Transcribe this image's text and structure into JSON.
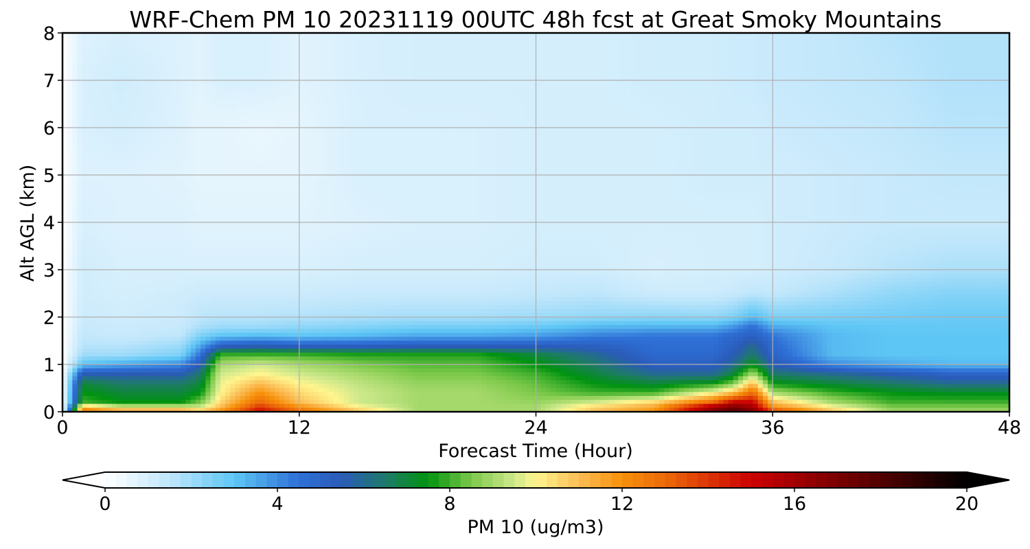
{
  "chart_data": {
    "type": "heatmap",
    "title": "WRF-Chem PM 10  20231119 00UTC 48h fcst at Great Smoky Mountains",
    "xlabel": "Forecast Time (Hour)",
    "ylabel": "Alt AGL (km)",
    "xlim": [
      0,
      48
    ],
    "ylim": [
      0,
      8
    ],
    "x_ticks": [
      0,
      12,
      24,
      36,
      48
    ],
    "y_ticks": [
      0,
      1,
      2,
      3,
      4,
      5,
      6,
      7,
      8
    ],
    "grid": true,
    "colorbar": {
      "label": "PM 10  (ug/m3)",
      "range": [
        0,
        20
      ],
      "ticks": [
        0,
        4,
        8,
        12,
        16,
        20
      ],
      "extend": "both",
      "stops": [
        {
          "v": 0,
          "c": "#ffffff"
        },
        {
          "v": 1.5,
          "c": "#bfe6fb"
        },
        {
          "v": 3,
          "c": "#5ec6f5"
        },
        {
          "v": 4.5,
          "c": "#2e6fd6"
        },
        {
          "v": 5.5,
          "c": "#2a5bb8"
        },
        {
          "v": 6.5,
          "c": "#1f7a6a"
        },
        {
          "v": 7.5,
          "c": "#00930f"
        },
        {
          "v": 8.5,
          "c": "#7cc94a"
        },
        {
          "v": 9.5,
          "c": "#cfe98c"
        },
        {
          "v": 10,
          "c": "#fff58e"
        },
        {
          "v": 11,
          "c": "#fbbd55"
        },
        {
          "v": 12,
          "c": "#f7900a"
        },
        {
          "v": 13,
          "c": "#ec6a0a"
        },
        {
          "v": 15,
          "c": "#cc0000"
        },
        {
          "v": 17,
          "c": "#7a0000"
        },
        {
          "v": 20,
          "c": "#000000"
        }
      ]
    },
    "hours": [
      0,
      1,
      3,
      6,
      7,
      8,
      10,
      12,
      15,
      18,
      21,
      24,
      27,
      30,
      33,
      34,
      35,
      36,
      39,
      42,
      45,
      48
    ],
    "altitudes_km": [
      0,
      0.1,
      0.2,
      0.4,
      0.6,
      0.8,
      1,
      1.2,
      1.4,
      1.6,
      1.8,
      2,
      2.5,
      3,
      4,
      5,
      6,
      7,
      8
    ],
    "pm10_ugm3": [
      [
        0,
        13,
        12,
        12,
        11,
        12,
        15,
        13,
        11,
        9,
        9,
        9,
        11,
        12,
        17,
        18,
        17,
        14,
        11,
        9,
        9,
        9
      ],
      [
        0,
        11,
        9.5,
        9.5,
        9.5,
        11,
        14,
        12,
        10,
        9,
        9,
        9,
        10.5,
        11.5,
        16,
        17,
        16,
        12,
        10,
        8.5,
        8.5,
        8.5
      ],
      [
        0,
        8,
        7.5,
        7.5,
        8.5,
        10.5,
        13,
        11,
        9.5,
        9,
        9,
        8.8,
        9.5,
        10.5,
        13,
        15,
        15,
        11,
        9,
        8,
        8,
        8
      ],
      [
        0,
        7.5,
        7,
        7,
        7.5,
        10,
        12,
        10.5,
        9.5,
        9,
        9,
        8.5,
        8,
        8,
        10,
        11,
        13,
        9,
        8,
        7.5,
        7.3,
        7.3
      ],
      [
        0,
        7,
        6.5,
        6.5,
        7,
        9.8,
        11,
        10,
        9.3,
        8.8,
        8.8,
        8.3,
        7.5,
        7,
        7.5,
        8.5,
        11,
        7.5,
        7,
        6.5,
        6,
        6
      ],
      [
        0,
        5.5,
        5.5,
        5.5,
        6.5,
        9.5,
        10,
        9.5,
        9,
        8.5,
        8.5,
        8,
        7,
        6,
        6,
        7,
        9,
        6.5,
        6,
        5.5,
        5,
        5
      ],
      [
        0,
        3,
        3.5,
        4,
        5.5,
        9,
        9.5,
        9,
        8.5,
        8.2,
        8.2,
        7.5,
        6.5,
        5.2,
        5.2,
        6,
        7.5,
        5.5,
        4,
        3.5,
        3.2,
        3.2
      ],
      [
        0,
        2,
        2,
        2.5,
        4.5,
        8,
        8,
        8,
        7.8,
        7.8,
        7.8,
        7,
        6,
        4.8,
        4.8,
        5.5,
        6.5,
        5,
        3.2,
        3,
        3,
        3
      ],
      [
        0,
        1.6,
        1.6,
        2,
        3.5,
        5,
        5.3,
        5,
        5,
        5.2,
        5.2,
        5.2,
        5.2,
        4.6,
        4.6,
        5.2,
        6,
        4.7,
        3.2,
        3,
        3,
        3
      ],
      [
        0,
        1.4,
        1.3,
        1.5,
        2.5,
        3,
        3.2,
        3,
        3.2,
        3.5,
        3.5,
        3.7,
        4.2,
        4.4,
        4.4,
        4.8,
        5.2,
        4.4,
        3.2,
        3,
        3,
        3
      ],
      [
        0,
        1.3,
        1.2,
        1.3,
        1.8,
        2,
        2,
        2.2,
        2.4,
        2.6,
        2.6,
        2.8,
        3.2,
        3.3,
        3.3,
        3.8,
        4.5,
        3.5,
        3,
        2.9,
        2.9,
        2.9
      ],
      [
        0,
        1.2,
        1.1,
        1.2,
        1.5,
        1.6,
        1.6,
        1.7,
        1.8,
        1.9,
        1.9,
        2,
        2.2,
        2.3,
        2.2,
        2.5,
        3.2,
        2.5,
        2.6,
        2.7,
        2.8,
        2.8
      ],
      [
        0,
        1.1,
        1,
        1.1,
        1.2,
        1.2,
        1.2,
        1.2,
        1.3,
        1.3,
        1.3,
        1.4,
        1.5,
        1.2,
        1.2,
        1.3,
        1.5,
        1.4,
        1.8,
        2.2,
        2.4,
        2.4
      ],
      [
        0,
        1.1,
        0.9,
        0.9,
        0.9,
        0.9,
        0.9,
        0.9,
        1,
        1,
        1,
        1.1,
        1.1,
        0.9,
        1,
        1,
        1,
        1.1,
        1.3,
        1.6,
        1.8,
        1.8
      ],
      [
        0,
        0.9,
        0.8,
        0.8,
        0.7,
        0.7,
        0.7,
        0.7,
        0.8,
        0.9,
        0.9,
        1,
        1,
        1,
        1,
        1,
        1,
        1.1,
        1.2,
        1.3,
        1.3,
        1.3
      ],
      [
        0,
        0.8,
        0.8,
        0.7,
        0.6,
        0.6,
        0.6,
        0.6,
        0.9,
        0.9,
        0.9,
        1,
        1,
        1,
        1.1,
        1.1,
        1.1,
        1.1,
        1.2,
        1.3,
        1.4,
        1.4
      ],
      [
        0,
        0.9,
        1,
        0.8,
        0.6,
        0.6,
        0.5,
        0.6,
        0.9,
        0.9,
        0.9,
        1,
        1,
        1,
        1.1,
        1.1,
        1.1,
        1.2,
        1.3,
        1.4,
        1.6,
        1.6
      ],
      [
        0,
        0.9,
        1.1,
        0.8,
        0.7,
        0.9,
        0.9,
        0.7,
        0.9,
        1,
        1,
        1,
        1,
        1.1,
        1.1,
        1.2,
        1.2,
        1.3,
        1.4,
        1.5,
        1.7,
        1.7
      ],
      [
        0,
        0.8,
        0.9,
        0.8,
        0.7,
        0.9,
        0.9,
        0.7,
        0.9,
        1,
        1,
        1,
        1,
        1.1,
        1.1,
        1.2,
        1.2,
        1.3,
        1.4,
        1.6,
        1.7,
        1.7
      ]
    ]
  }
}
